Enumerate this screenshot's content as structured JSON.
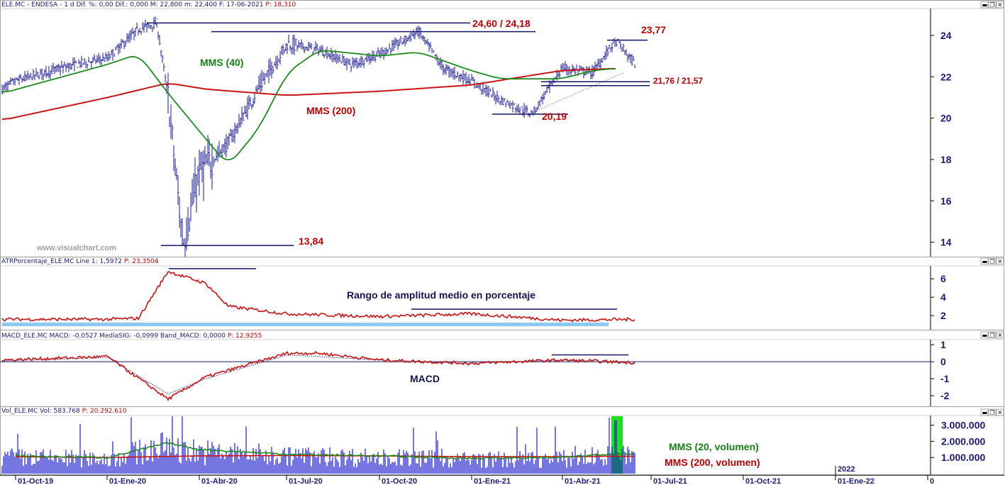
{
  "panels": {
    "price": {
      "title_left": "ELE.MC - ENDESA -  1 d  Dif. %: 0,00  Dif.: 0,000  M: 22,800  m: 22,400  F: 17-06-2021",
      "title_right": "P: 18,310"
    },
    "atr": {
      "title_left": "ATRPorcentaje_ELE.MC  Line 1: 1,5972",
      "title_right": "P: 23,3504"
    },
    "macd": {
      "title_left": "MACD_ELE.MC  MACD: -0,0527  MediaSIG: -0,0999  Band_MACD: 0,0000",
      "title_right": "P: 12,9255"
    },
    "vol": {
      "title_left": "Vol_ELE.MC  Vol: 583.768",
      "title_right": "P: 20.292.610"
    }
  },
  "window_buttons": {
    "minimize": "▬",
    "restore": "❐",
    "close": "✕"
  },
  "watermark": "www.visualchart.com",
  "x_axis": {
    "labels": [
      "01-Oct-19",
      "01-Ene-20",
      "01-Abr-20",
      "01-Jul-20",
      "01-Oct-20",
      "01-Ene-21",
      "01-Abr-21",
      "01-Jul-21",
      "01-Oct-21",
      "01-Ene-22",
      "0"
    ],
    "year_marker": "2022"
  },
  "annotations": {
    "resistance_high": "24,60 / 24,18",
    "recent_high": "23,77",
    "support_band": "21,76 / 21,57",
    "low_2021": "20,19",
    "covid_low": "13,84",
    "mms40": "MMS (40)",
    "mms200": "MMS (200)",
    "atr_label": "Rango de amplitud medio en porcentaje",
    "macd_label": "MACD",
    "vol_mms20": "MMS (20, volumen)",
    "vol_mms200": "MMS (200, volumen)"
  },
  "colors": {
    "price_bars": "#1a1a8c",
    "mms40": "#1e8c1e",
    "mms200": "#c81414",
    "atr_line": "#c81414",
    "macd_line": "#c81414",
    "macd_signal": "#2a2a80",
    "volume_bars": "#1a1acc",
    "vol_mms20": "#1e8c1e",
    "vol_mms200": "#c81414",
    "annotation_lines": "#141464",
    "highlight": "#22dd22",
    "atr_band": "#8ec8f0"
  },
  "chart_data": [
    {
      "type": "ohlc",
      "title": "ELE.MC - ENDESA - 1 d",
      "x_labels": [
        "01-Oct-19",
        "01-Ene-20",
        "01-Abr-20",
        "01-Jul-20",
        "01-Oct-20",
        "01-Ene-21",
        "01-Abr-21"
      ],
      "close_path": [
        [
          "Sep-19",
          21.4
        ],
        [
          "01-Oct-19",
          21.8
        ],
        [
          "Nov-19",
          22.2
        ],
        [
          "Dic-19",
          22.6
        ],
        [
          "01-Ene-20",
          22.9
        ],
        [
          "Feb-20",
          24.3
        ],
        [
          "19-Feb-20",
          24.6
        ],
        [
          "Mar-20",
          21.0
        ],
        [
          "16-Mar-20",
          13.84
        ],
        [
          "01-Abr-20",
          17.3
        ],
        [
          "May-20",
          18.8
        ],
        [
          "Jun-20",
          21.5
        ],
        [
          "01-Jul-20",
          23.6
        ],
        [
          "Ago-20",
          23.3
        ],
        [
          "Sep-20",
          22.6
        ],
        [
          "01-Oct-20",
          23.1
        ],
        [
          "Nov-20",
          24.18
        ],
        [
          "Dic-20",
          22.4
        ],
        [
          "01-Ene-21",
          21.8
        ],
        [
          "Feb-21",
          20.9
        ],
        [
          "Mar-21",
          20.19
        ],
        [
          "01-Abr-21",
          22.4
        ],
        [
          "May-21",
          22.2
        ],
        [
          "Jun-21",
          23.77
        ],
        [
          "17-Jun-21",
          22.6
        ]
      ],
      "series": [
        {
          "name": "MMS (40)",
          "values": [
            [
              "Sep-19",
              21.2
            ],
            [
              "01-Ene-20",
              22.6
            ],
            [
              "Feb-20",
              23.1
            ],
            [
              "Mar-20",
              21.2
            ],
            [
              "Abr-20",
              19.0
            ],
            [
              "May-20",
              17.7
            ],
            [
              "Jun-20",
              19.5
            ],
            [
              "01-Jul-20",
              22.2
            ],
            [
              "Ago-20",
              23.3
            ],
            [
              "01-Oct-20",
              23.0
            ],
            [
              "Nov-20",
              23.2
            ],
            [
              "01-Ene-21",
              22.3
            ],
            [
              "Feb-21",
              21.9
            ],
            [
              "01-Abr-21",
              21.9
            ],
            [
              "May-21",
              22.3
            ],
            [
              "Jun-21",
              22.4
            ]
          ]
        },
        {
          "name": "MMS (200)",
          "values": [
            [
              "Sep-19",
              19.9
            ],
            [
              "01-Ene-20",
              21.0
            ],
            [
              "Mar-20",
              21.7
            ],
            [
              "Abr-20",
              21.4
            ],
            [
              "01-Jul-20",
              21.1
            ],
            [
              "01-Oct-20",
              21.3
            ],
            [
              "01-Ene-21",
              21.6
            ],
            [
              "01-Abr-21",
              22.3
            ],
            [
              "Jun-21",
              22.4
            ]
          ]
        }
      ],
      "levels": [
        24.6,
        24.18,
        23.77,
        21.76,
        21.57,
        20.19,
        13.84
      ],
      "ylim": [
        13.3,
        25.3
      ],
      "yticks": [
        14,
        16,
        18,
        20,
        22,
        24
      ]
    },
    {
      "type": "line",
      "title": "ATRPorcentaje_ELE.MC",
      "series": [
        {
          "name": "Line 1",
          "values": [
            [
              "Sep-19",
              1.6
            ],
            [
              "01-Ene-20",
              1.6
            ],
            [
              "Feb-20",
              1.7
            ],
            [
              "Mar-20",
              6.8
            ],
            [
              "Abr-20",
              5.5
            ],
            [
              "May-20",
              3.0
            ],
            [
              "01-Jul-20",
              2.2
            ],
            [
              "01-Oct-20",
              1.9
            ],
            [
              "01-Ene-21",
              2.2
            ],
            [
              "01-Abr-21",
              1.5
            ],
            [
              "17-Jun-21",
              1.5972
            ]
          ]
        }
      ],
      "ylim": [
        0.7,
        7.4
      ],
      "yticks": [
        2,
        4,
        6
      ]
    },
    {
      "type": "line",
      "title": "MACD_ELE.MC",
      "series": [
        {
          "name": "MACD",
          "values": [
            [
              "Sep-19",
              0.1
            ],
            [
              "01-Ene-20",
              0.3
            ],
            [
              "Mar-20",
              -2.2
            ],
            [
              "Abr-20",
              -0.9
            ],
            [
              "01-Jul-20",
              0.5
            ],
            [
              "Ago-20",
              0.5
            ],
            [
              "01-Oct-20",
              0.1
            ],
            [
              "01-Ene-21",
              -0.1
            ],
            [
              "01-Abr-21",
              0.1
            ],
            [
              "17-Jun-21",
              -0.0527
            ]
          ]
        },
        {
          "name": "MediaSIG",
          "values": [
            [
              "Sep-19",
              0.05
            ],
            [
              "01-Ene-20",
              0.25
            ],
            [
              "Mar-20",
              -1.9
            ],
            [
              "Abr-20",
              -1.0
            ],
            [
              "01-Jul-20",
              0.4
            ],
            [
              "01-Oct-20",
              0.1
            ],
            [
              "01-Ene-21",
              -0.1
            ],
            [
              "01-Abr-21",
              0.1
            ],
            [
              "17-Jun-21",
              -0.0999
            ]
          ]
        }
      ],
      "ylim": [
        -2.5,
        1.3
      ],
      "yticks": [
        -2,
        -1,
        0,
        1
      ]
    },
    {
      "type": "bar",
      "title": "Vol_ELE.MC",
      "series": [
        {
          "name": "Vol",
          "values": [
            [
              "17-Jun-21",
              583768
            ]
          ]
        },
        {
          "name": "MMS (20, volumen)",
          "values": [
            [
              "01-Oct-19",
              1100000
            ],
            [
              "01-Ene-20",
              1000000
            ],
            [
              "Mar-20",
              1900000
            ],
            [
              "01-Abr-20",
              1500000
            ],
            [
              "01-Jul-20",
              1200000
            ],
            [
              "01-Oct-20",
              1100000
            ],
            [
              "01-Ene-21",
              950000
            ],
            [
              "01-Abr-21",
              1000000
            ],
            [
              "Jun-21",
              1250000
            ]
          ]
        },
        {
          "name": "MMS (200, volumen)",
          "values": [
            [
              "01-Oct-19",
              1050000
            ],
            [
              "01-Ene-20",
              1000000
            ],
            [
              "01-Abr-20",
              1100000
            ],
            [
              "01-Jul-20",
              1120000
            ],
            [
              "01-Oct-20",
              1100000
            ],
            [
              "01-Ene-21",
              1050000
            ],
            [
              "01-Abr-21",
              1050000
            ],
            [
              "Jun-21",
              1080000
            ]
          ]
        }
      ],
      "ylim": [
        0,
        3600000
      ],
      "yticks": [
        1000000,
        2000000,
        3000000
      ],
      "ytick_labels": [
        "1.000.000",
        "2.000.000",
        "3.000.000"
      ]
    }
  ]
}
